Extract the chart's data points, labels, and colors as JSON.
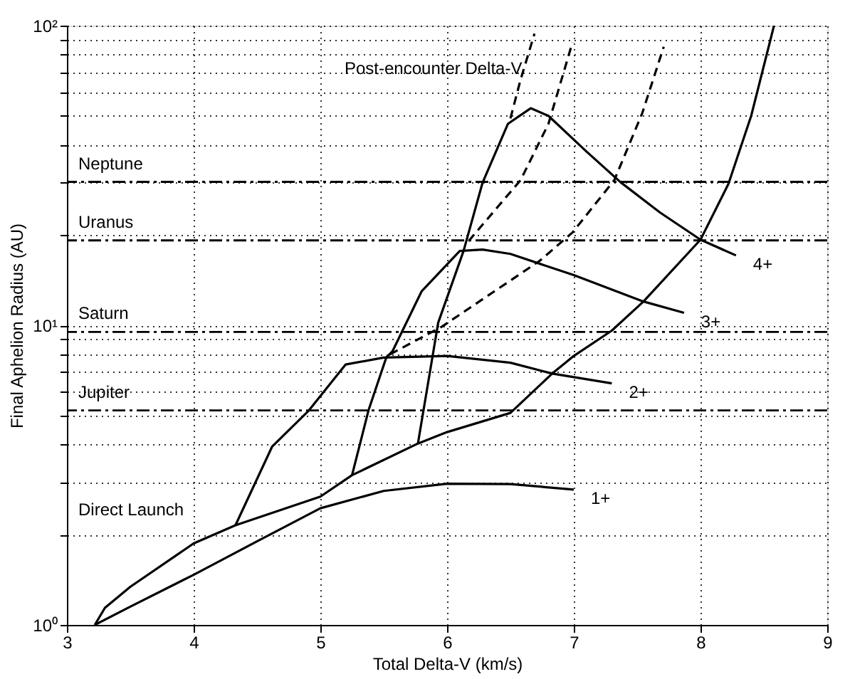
{
  "chart_data": {
    "type": "line",
    "xlabel": "Total Delta-V (km/s)",
    "ylabel": "Final Aphelion Radius (AU)",
    "log": "y",
    "grid": true,
    "line_style": "solid",
    "xlim": [
      3,
      9
    ],
    "xticks": [
      3,
      4,
      5,
      6,
      7,
      8,
      9
    ],
    "ylim": [
      1,
      100
    ],
    "yticks": [
      {
        "value": 1,
        "label": "10⁰"
      },
      {
        "value": 2,
        "label": null
      },
      {
        "value": 3,
        "label": null
      },
      {
        "value": 4,
        "label": null
      },
      {
        "value": 5,
        "label": null
      },
      {
        "value": 6,
        "label": null
      },
      {
        "value": 7,
        "label": null
      },
      {
        "value": 8,
        "label": null
      },
      {
        "value": 9,
        "label": null
      },
      {
        "value": 10,
        "label": "10¹"
      },
      {
        "value": 20,
        "label": null
      },
      {
        "value": 30,
        "label": null
      },
      {
        "value": 40,
        "label": null
      },
      {
        "value": 50,
        "label": null
      },
      {
        "value": 60,
        "label": null
      },
      {
        "value": 70,
        "label": null
      },
      {
        "value": 80,
        "label": null
      },
      {
        "value": 90,
        "label": null
      },
      {
        "value": 100,
        "label": "10²"
      }
    ],
    "series": [
      {
        "color": "#000000",
        "x": [
          3.22,
          3.3,
          3.5,
          4.0,
          4.33,
          5.0,
          5.25,
          5.77,
          6.0,
          6.5,
          6.83,
          7.0,
          7.3,
          7.55,
          8.0,
          8.22,
          8.4,
          8.58
        ],
        "values": [
          1,
          1.14,
          1.34,
          1.87,
          2.15,
          2.68,
          3.16,
          4.03,
          4.4,
          5.1,
          6.9,
          7.9,
          9.6,
          12.0,
          19.3,
          29.6,
          50,
          100
        ]
      },
      {
        "name": "1+",
        "color": "#000000",
        "x": [
          3.22,
          3.5,
          4.0,
          4.5,
          5.0,
          5.5,
          6.0,
          6.5,
          7.0
        ],
        "values": [
          1,
          1.15,
          1.47,
          1.9,
          2.45,
          2.8,
          2.96,
          2.95,
          2.83
        ]
      },
      {
        "name": "2+",
        "color": "#000000",
        "x": [
          4.33,
          4.62,
          4.91,
          5.2,
          5.5,
          6.0,
          6.5,
          6.83,
          7.3
        ],
        "values": [
          2.15,
          3.94,
          5.2,
          7.4,
          7.8,
          7.9,
          7.5,
          6.9,
          6.4
        ]
      },
      {
        "name": "3+",
        "color": "#000000",
        "x": [
          5.25,
          5.38,
          5.52,
          5.57,
          5.8,
          6.1,
          6.28,
          6.5,
          7.0,
          7.55,
          7.87
        ],
        "values": [
          3.16,
          5.2,
          7.8,
          8.2,
          13,
          17.7,
          17.9,
          17.3,
          14.7,
          12.0,
          11.0
        ]
      },
      {
        "name": "4+",
        "color": "#000000",
        "x": [
          5.77,
          5.93,
          6.13,
          6.28,
          6.48,
          6.66,
          6.8,
          7.1,
          7.37,
          7.68,
          8.0,
          8.28
        ],
        "values": [
          4.03,
          10.2,
          17.7,
          29.9,
          47,
          53,
          50,
          38,
          30,
          23.8,
          19.3,
          17.1
        ]
      },
      {
        "color": "#000000",
        "line_style": "dashed",
        "x": [
          5.55,
          5.96,
          6.73,
          6.99,
          7.32,
          7.54,
          7.71
        ],
        "values": [
          8.0,
          9.9,
          16.4,
          20.4,
          30.5,
          51,
          85
        ]
      },
      {
        "color": "#000000",
        "line_style": "dashed",
        "x": [
          6.17,
          6.58,
          6.8,
          6.99
        ],
        "values": [
          19.1,
          30.5,
          47,
          88
        ]
      },
      {
        "color": "#000000",
        "line_style": "dashed",
        "x": [
          6.5,
          6.58,
          6.69
        ],
        "values": [
          49,
          66,
          94
        ]
      }
    ],
    "ref_lines": [
      {
        "axis": "y",
        "value": 30.1,
        "label": "Neptune",
        "color": "#000000",
        "line_style": "dashed"
      },
      {
        "axis": "y",
        "value": 19.2,
        "label": "Uranus",
        "color": "#000000",
        "line_style": "dashed"
      },
      {
        "axis": "y",
        "value": 9.5,
        "label": "Saturn",
        "color": "#000000",
        "line_style": "dashed"
      },
      {
        "axis": "y",
        "value": 5.2,
        "label": "Jupiter",
        "color": "#000000",
        "line_style": "dashed"
      }
    ],
    "annotations": [
      "Post-encounter Delta-V",
      "Direct Launch"
    ]
  }
}
